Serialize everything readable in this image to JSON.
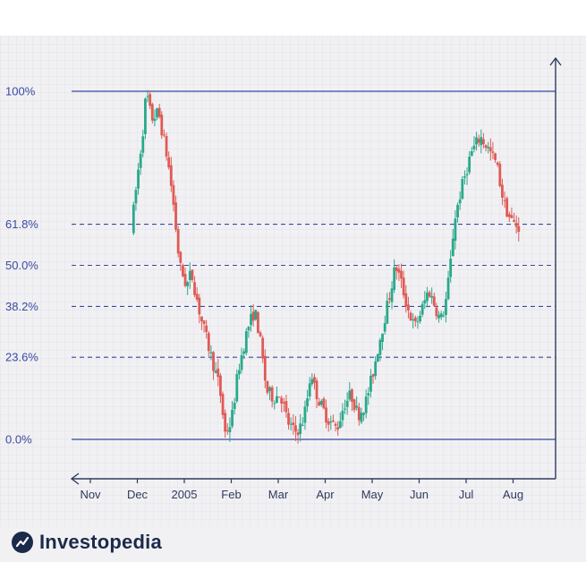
{
  "chart_data": {
    "type": "candlestick",
    "title": "",
    "xlabel": "",
    "ylabel": "",
    "x_ticks": [
      "Nov",
      "Dec",
      "2005",
      "Feb",
      "Mar",
      "Apr",
      "May",
      "Jun",
      "Jul",
      "Aug"
    ],
    "fib_levels": [
      {
        "label": "100%",
        "value": 100,
        "style": "solid"
      },
      {
        "label": "61.8%",
        "value": 61.8,
        "style": "dashed"
      },
      {
        "label": "50.0%",
        "value": 50.0,
        "style": "dashed"
      },
      {
        "label": "38.2%",
        "value": 38.2,
        "style": "dashed"
      },
      {
        "label": "23.6%",
        "value": 23.6,
        "style": "dashed"
      },
      {
        "label": "0.0%",
        "value": 0,
        "style": "solid"
      }
    ],
    "ylim": [
      -12,
      108
    ],
    "colors": {
      "up": "#2aa88a",
      "down": "#e05a55",
      "level": "#3b4aa0",
      "axis": "#2f3b5c"
    },
    "grid": true,
    "price_path": [
      [
        0.92,
        60
      ],
      [
        1.05,
        75
      ],
      [
        1.18,
        90
      ],
      [
        1.24,
        100
      ],
      [
        1.35,
        92
      ],
      [
        1.5,
        94
      ],
      [
        1.7,
        80
      ],
      [
        1.8,
        70
      ],
      [
        1.95,
        50
      ],
      [
        2.1,
        44
      ],
      [
        2.2,
        48
      ],
      [
        2.4,
        35
      ],
      [
        2.6,
        25
      ],
      [
        2.8,
        15
      ],
      [
        2.92,
        2
      ],
      [
        3.05,
        5
      ],
      [
        3.2,
        20
      ],
      [
        3.4,
        32
      ],
      [
        3.55,
        37
      ],
      [
        3.65,
        30
      ],
      [
        3.8,
        14
      ],
      [
        3.95,
        12
      ],
      [
        4.1,
        13
      ],
      [
        4.25,
        5
      ],
      [
        4.4,
        2
      ],
      [
        4.55,
        4
      ],
      [
        4.65,
        10
      ],
      [
        4.75,
        20
      ],
      [
        4.82,
        15
      ],
      [
        4.95,
        10
      ],
      [
        5.1,
        6
      ],
      [
        5.3,
        3
      ],
      [
        5.45,
        10
      ],
      [
        5.6,
        13
      ],
      [
        5.75,
        7
      ],
      [
        5.9,
        10
      ],
      [
        6.05,
        18
      ],
      [
        6.2,
        28
      ],
      [
        6.4,
        40
      ],
      [
        6.55,
        50
      ],
      [
        6.65,
        46
      ],
      [
        6.8,
        38
      ],
      [
        6.95,
        32
      ],
      [
        7.1,
        37
      ],
      [
        7.25,
        43
      ],
      [
        7.4,
        38
      ],
      [
        7.5,
        34
      ],
      [
        7.6,
        38
      ],
      [
        7.7,
        48
      ],
      [
        7.8,
        63
      ],
      [
        7.95,
        72
      ],
      [
        8.15,
        82
      ],
      [
        8.35,
        87
      ],
      [
        8.5,
        84
      ],
      [
        8.7,
        79
      ],
      [
        8.85,
        68
      ],
      [
        9.0,
        63
      ],
      [
        9.15,
        61
      ]
    ]
  },
  "brand": {
    "name": "Investopedia"
  }
}
